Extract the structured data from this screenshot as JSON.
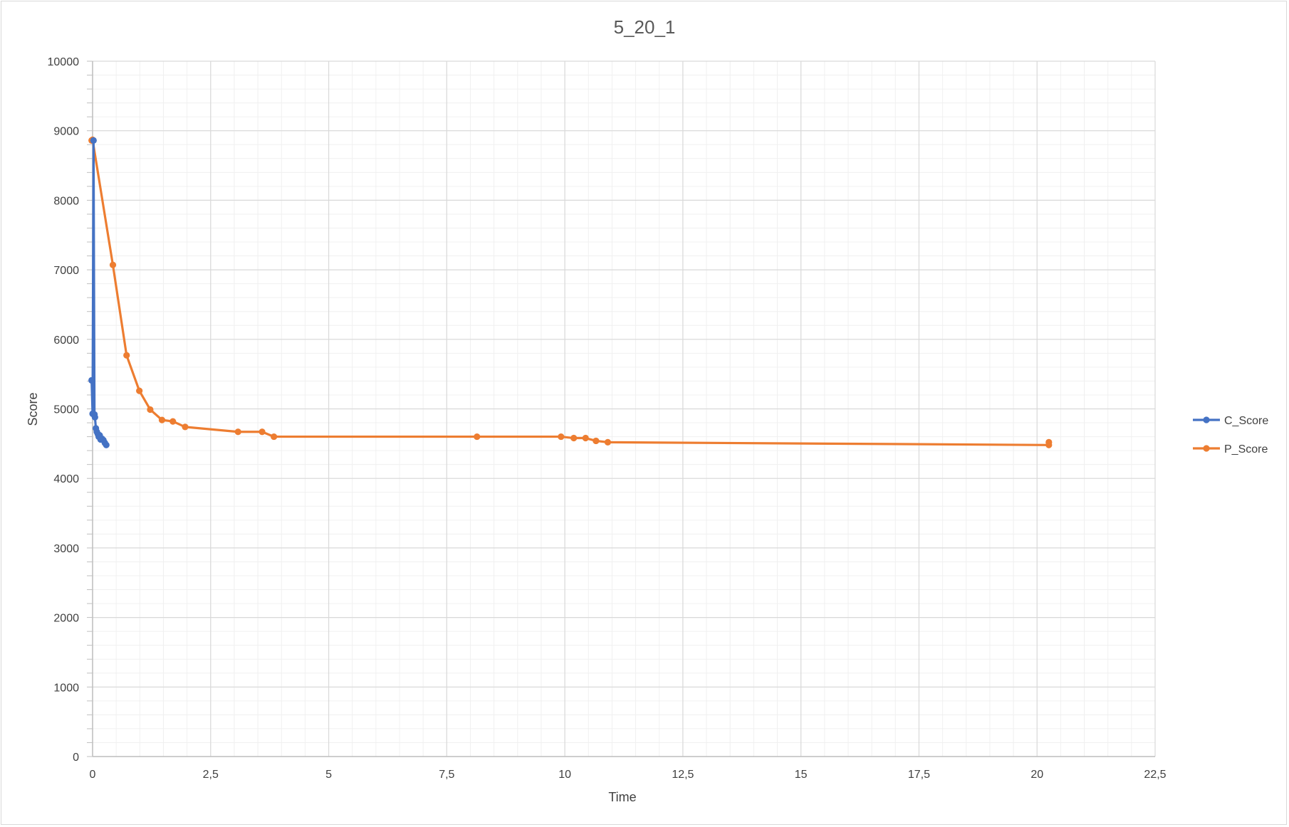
{
  "chart_data": {
    "type": "scatter",
    "title": "5_20_1",
    "xlabel": "Time",
    "ylabel": "Score",
    "xlim": [
      0,
      22.5
    ],
    "ylim": [
      0,
      10000
    ],
    "x_ticks": [
      "0",
      "2,5",
      "5",
      "7,5",
      "10",
      "12,5",
      "15",
      "17,5",
      "20",
      "22,5"
    ],
    "y_ticks": [
      "0",
      "1000",
      "2000",
      "3000",
      "4000",
      "5000",
      "6000",
      "7000",
      "8000",
      "9000",
      "10000"
    ],
    "grid": true,
    "minor_grid": true,
    "legend_position": "right",
    "series": [
      {
        "name": "C_Score",
        "color": "#4472C4",
        "style": "line-markers",
        "points": [
          [
            -0.02,
            5410
          ],
          [
            0.0,
            4930
          ],
          [
            0.02,
            8860
          ],
          [
            0.04,
            4920
          ],
          [
            0.05,
            4880
          ],
          [
            0.07,
            4720
          ],
          [
            0.09,
            4670
          ],
          [
            0.11,
            4640
          ],
          [
            0.13,
            4600
          ],
          [
            0.15,
            4620
          ],
          [
            0.17,
            4560
          ],
          [
            0.2,
            4570
          ],
          [
            0.23,
            4550
          ],
          [
            0.26,
            4510
          ],
          [
            0.29,
            4480
          ]
        ]
      },
      {
        "name": "P_Score",
        "color": "#ED7D31",
        "style": "line-markers",
        "points": [
          [
            -0.02,
            8860
          ],
          [
            0.0,
            8870
          ],
          [
            0.43,
            7070
          ],
          [
            0.72,
            5770
          ],
          [
            0.99,
            5260
          ],
          [
            1.22,
            4990
          ],
          [
            1.47,
            4840
          ],
          [
            1.7,
            4820
          ],
          [
            1.96,
            4740
          ],
          [
            3.08,
            4670
          ],
          [
            3.59,
            4670
          ],
          [
            3.84,
            4600
          ],
          [
            8.14,
            4600
          ],
          [
            9.92,
            4600
          ],
          [
            10.19,
            4580
          ],
          [
            10.44,
            4580
          ],
          [
            10.66,
            4540
          ],
          [
            10.91,
            4520
          ],
          [
            20.25,
            4480
          ],
          [
            20.25,
            4520
          ]
        ]
      }
    ]
  }
}
